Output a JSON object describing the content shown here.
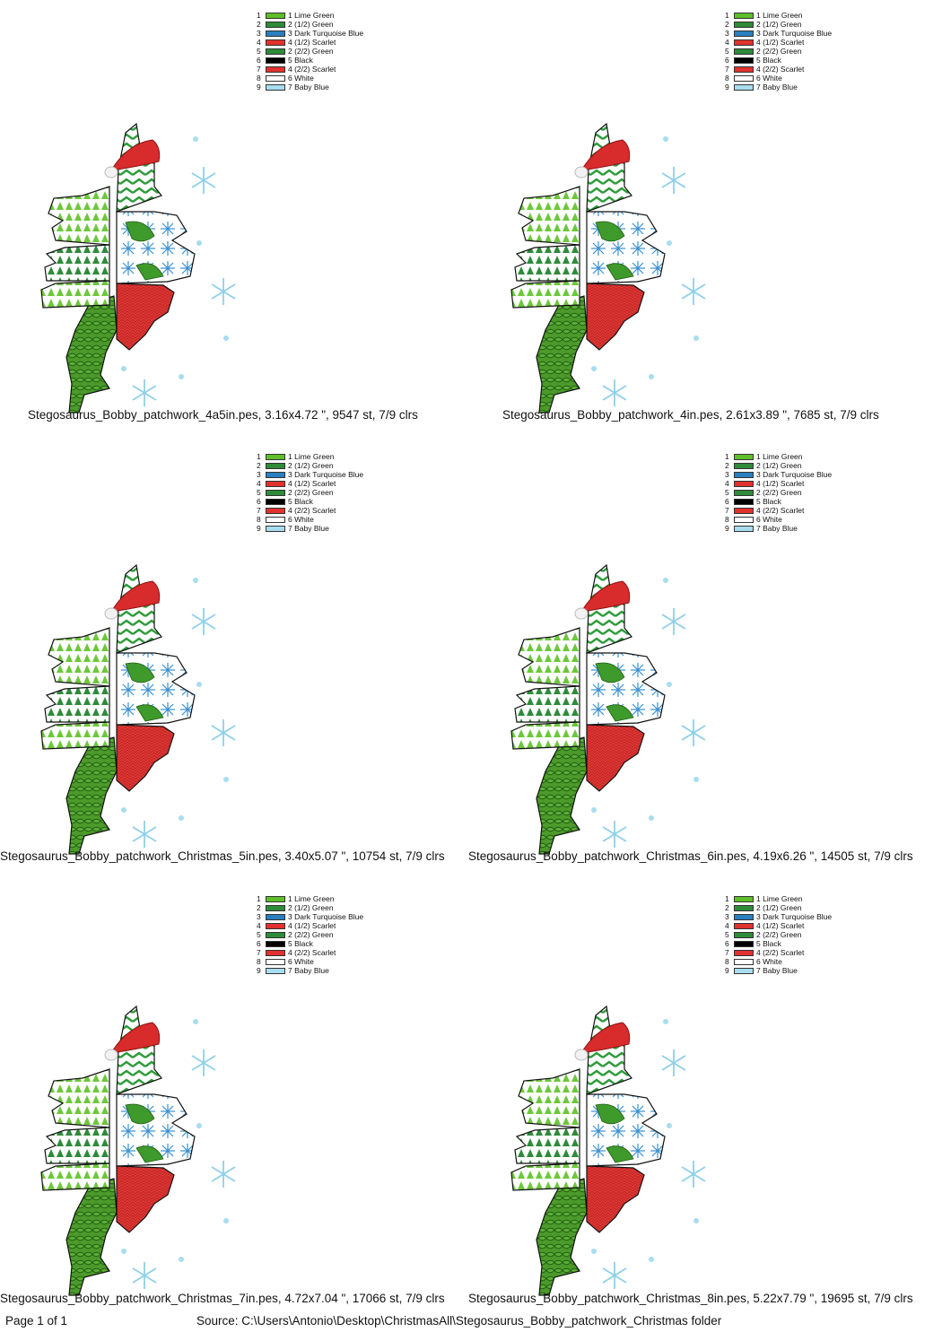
{
  "legend": [
    {
      "num": "1",
      "label": "1 Lime Green",
      "color": "#5fbf2a"
    },
    {
      "num": "2",
      "label": "2 (1/2) Green",
      "color": "#2e8b3a"
    },
    {
      "num": "3",
      "label": "3 Dark Turquoise Blue",
      "color": "#2a7fc0"
    },
    {
      "num": "4",
      "label": "4 (1/2) Scarlet",
      "color": "#e0322e"
    },
    {
      "num": "5",
      "label": "2 (2/2) Green",
      "color": "#2e8b3a"
    },
    {
      "num": "6",
      "label": "5 Black",
      "color": "#000000"
    },
    {
      "num": "7",
      "label": "4 (2/2) Scarlet",
      "color": "#e0322e"
    },
    {
      "num": "8",
      "label": "6 White",
      "color": "#ffffff"
    },
    {
      "num": "9",
      "label": "7 Baby Blue",
      "color": "#a8dcef"
    }
  ],
  "designs": [
    {
      "caption": "Stegosaurus_Bobby_patchwork_4a5in.pes, 3.16x4.72 \", 9547 st, 7/9 clrs"
    },
    {
      "caption": "Stegosaurus_Bobby_patchwork_4in.pes, 2.61x3.89 \", 7685 st, 7/9 clrs"
    },
    {
      "caption": "Stegosaurus_Bobby_patchwork_Christmas_5in.pes, 3.40x5.07 \", 10754 st, 7/9 clrs"
    },
    {
      "caption": "Stegosaurus_Bobby_patchwork_Christmas_6in.pes, 4.19x6.26 \", 14505 st, 7/9 clrs"
    },
    {
      "caption": "Stegosaurus_Bobby_patchwork_Christmas_7in.pes, 4.72x7.04 \", 17066 st, 7/9 clrs"
    },
    {
      "caption": "Stegosaurus_Bobby_patchwork_Christmas_8in.pes, 5.22x7.79 \", 19695 st, 7/9 clrs"
    }
  ],
  "footer": {
    "page": "Page 1 of 1",
    "source": "Source: C:\\Users\\Antonio\\Desktop\\ChristmasAll\\Stegosaurus_Bobby_patchwork_Christmas folder"
  }
}
